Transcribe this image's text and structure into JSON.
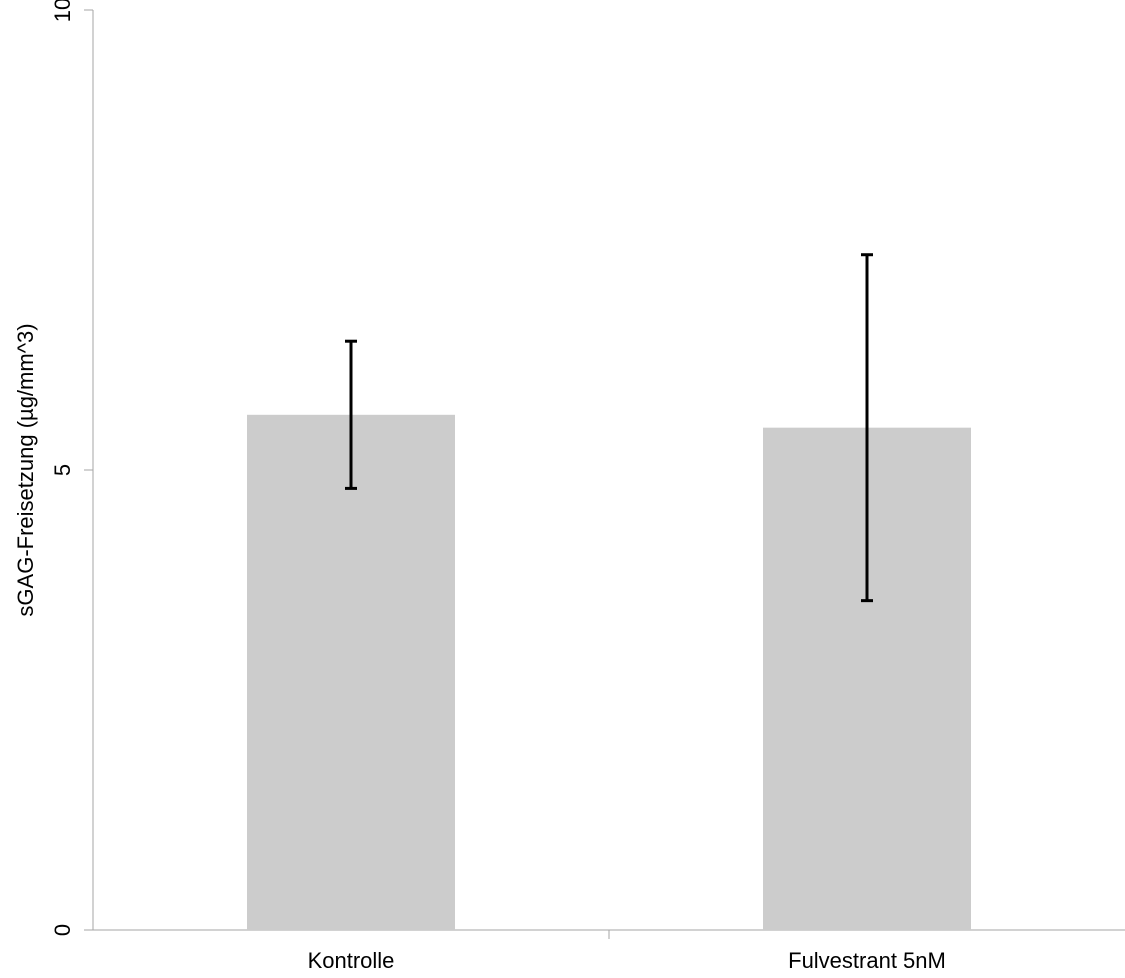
{
  "chart_data": {
    "type": "bar",
    "title": "",
    "xlabel": "",
    "ylabel": "sGAG-Freisetzung (µg/mm^3)",
    "categories": [
      "Kontrolle",
      "Fulvestrant 5nM"
    ],
    "series": [
      {
        "values": [
          5.6,
          5.46
        ],
        "error": [
          0.8,
          1.88
        ],
        "color": "#cccccc"
      }
    ],
    "ylim": [
      0,
      10
    ],
    "yticks": [
      0,
      5,
      10
    ],
    "grid": false,
    "legend": "none",
    "error_bar_color": "#000000"
  }
}
